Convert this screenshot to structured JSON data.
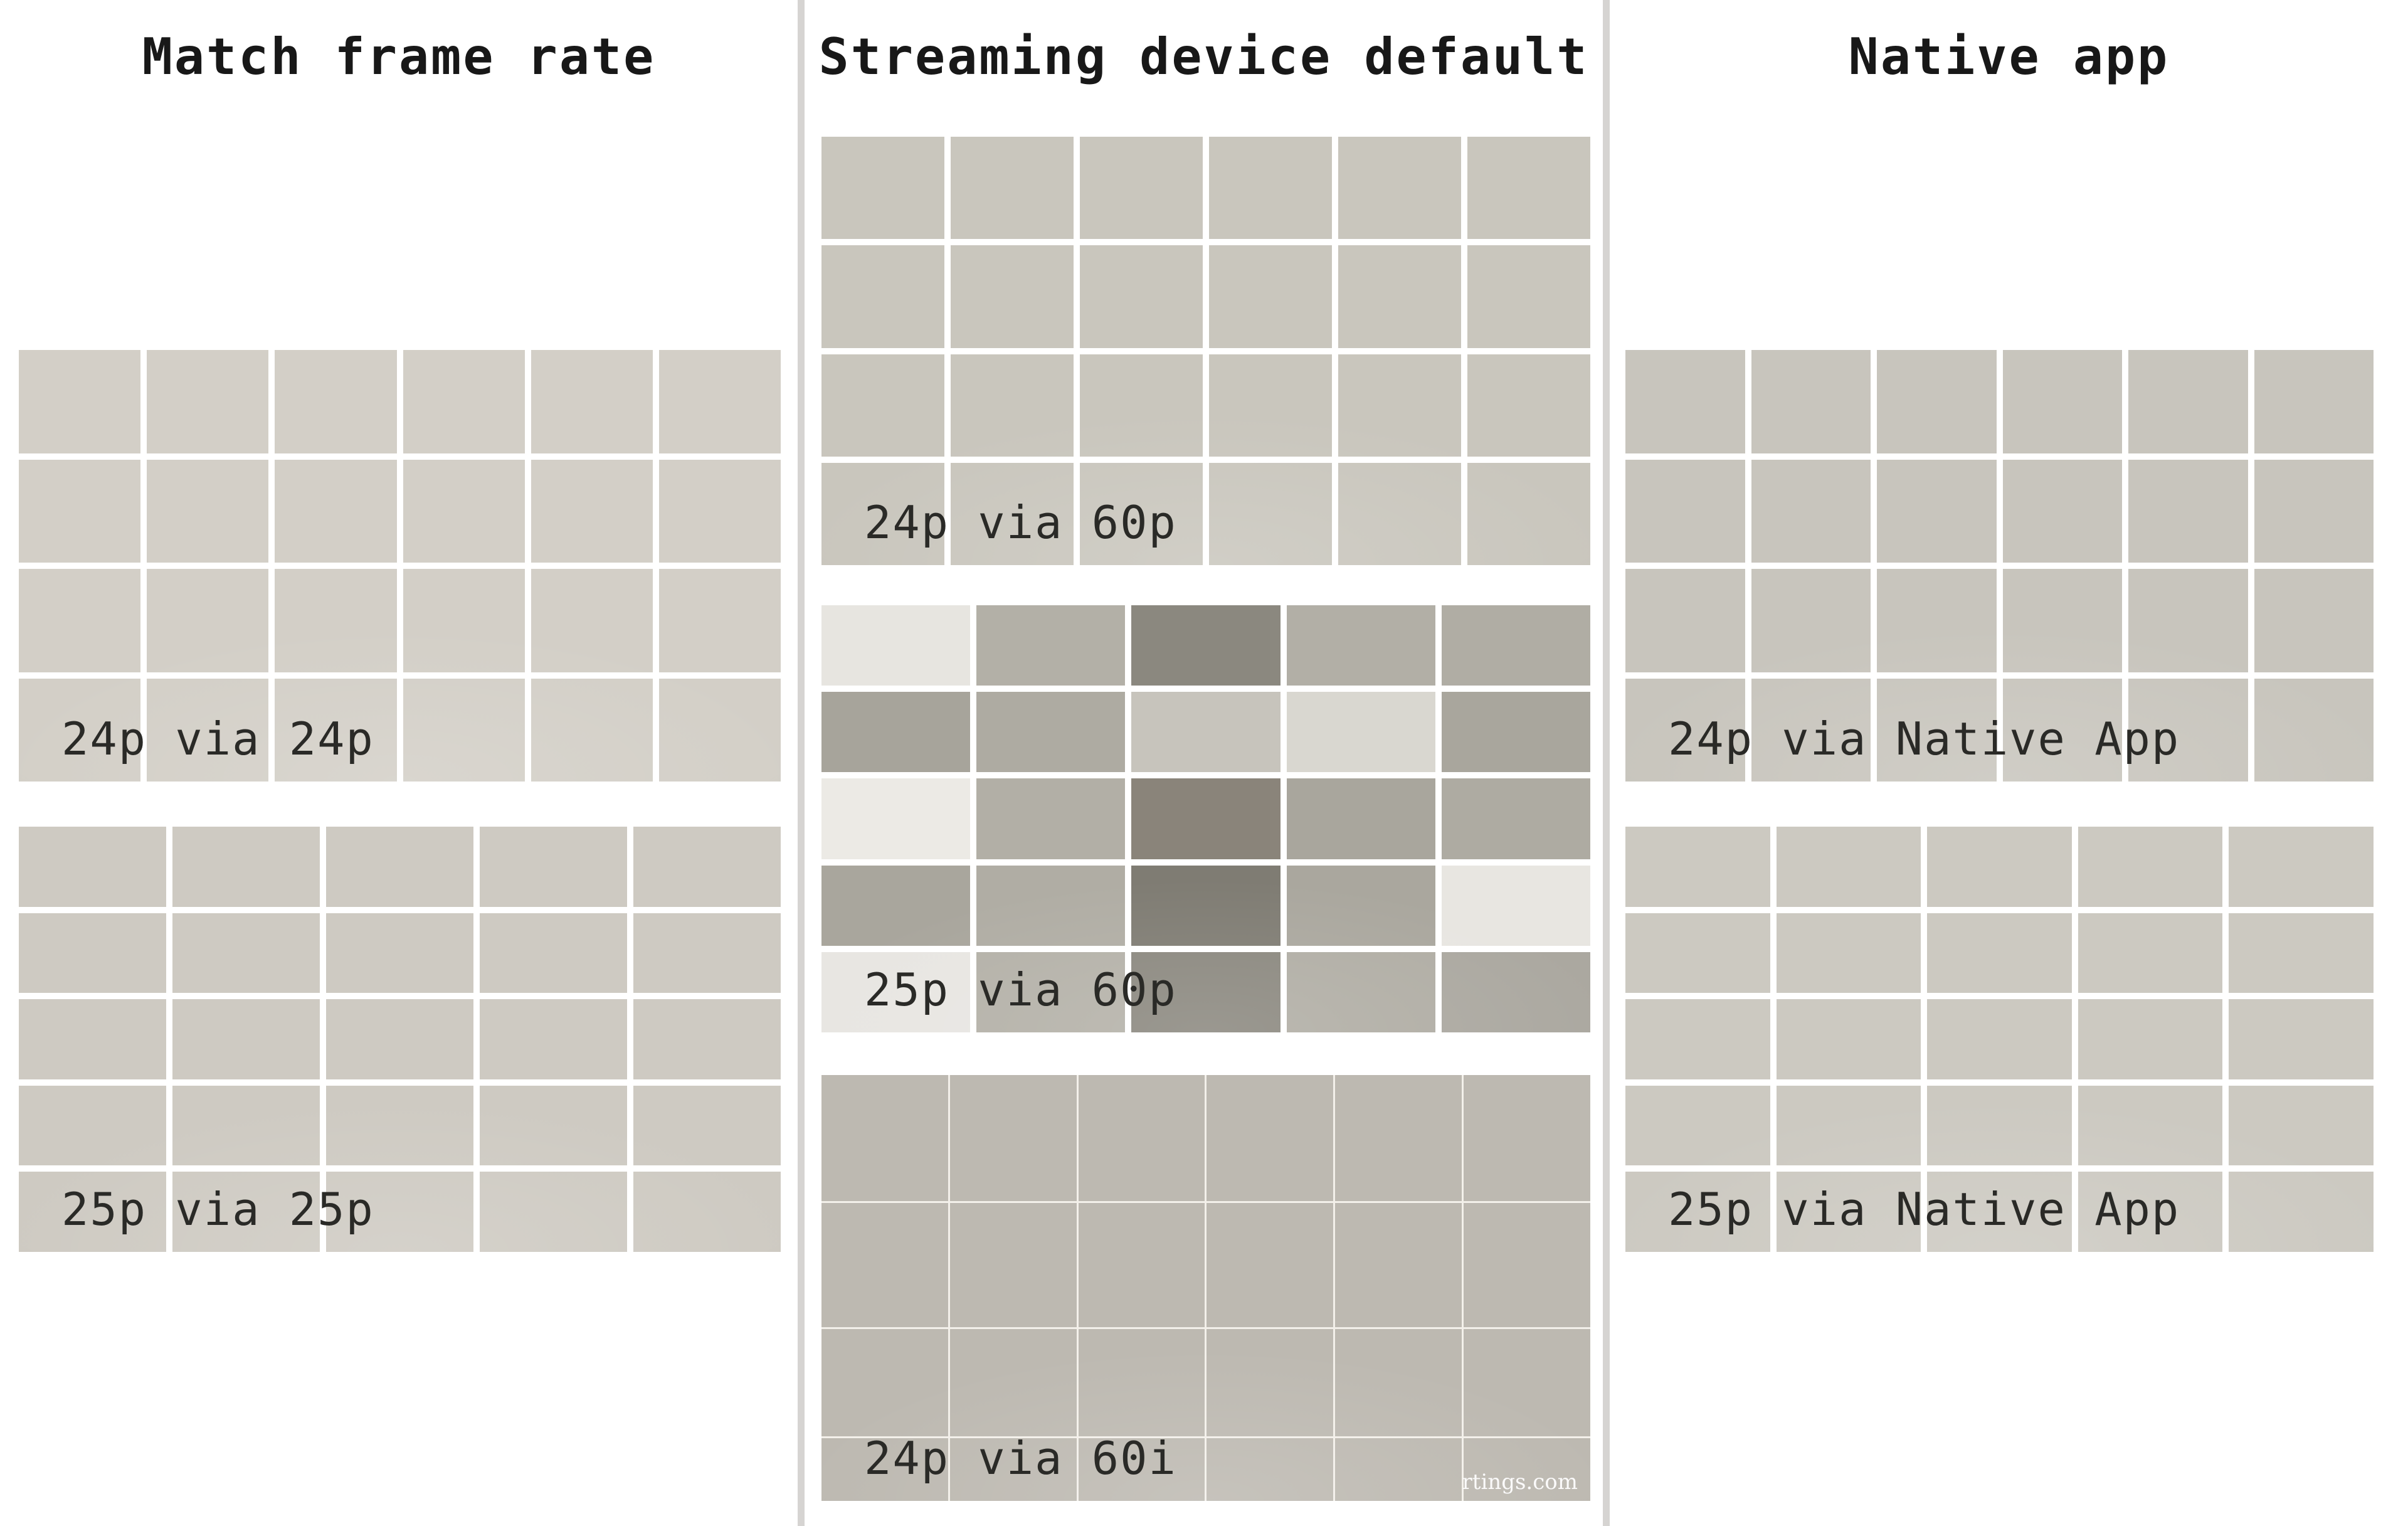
{
  "page": {
    "background_color": "#ffffff",
    "divider_color": "#d6d4d2"
  },
  "columns": [
    {
      "title": "Match frame rate"
    },
    {
      "title": "Streaming device default"
    },
    {
      "title": "Native app"
    }
  ],
  "watermark": "rtings.com",
  "panels": [
    {
      "label": "24p via 24p",
      "cols": 6,
      "rows": 4,
      "line_gap": 10,
      "line_color": "#ffffff",
      "cell_color": "#d3cfc7"
    },
    {
      "label": "25p via 25p",
      "cols": 5,
      "rows": 5,
      "line_gap": 10,
      "line_color": "#ffffff",
      "cell_color": "#cecac2"
    },
    {
      "label": "24p via 60p",
      "cols": 6,
      "rows": 4,
      "line_gap": 10,
      "line_color": "#ffffff",
      "cell_color": "#c9c6bd"
    },
    {
      "label": "25p via 60p",
      "cols": 5,
      "rows": 5,
      "line_gap": 10,
      "line_color": "#ffffff",
      "cell_colors": [
        [
          "#e7e5e0",
          "#b3b0a7",
          "#8b887f",
          "#b2afa6",
          "#b0ada4"
        ],
        [
          "#a7a49b",
          "#aeaba2",
          "#c7c4bc",
          "#d9d7d0",
          "#a9a69d"
        ],
        [
          "#eceae5",
          "#b2afa6",
          "#8a847a",
          "#a9a69d",
          "#aeaba2"
        ],
        [
          "#a9a69d",
          "#b0ada4",
          "#7f7c73",
          "#aaa79e",
          "#e8e6e1"
        ],
        [
          "#e8e6e2",
          "#b4b1a8",
          "#8a877e",
          "#b0ada4",
          "#aba8a0"
        ]
      ]
    },
    {
      "label": "24p via 60i",
      "cols": 6,
      "rows": 4,
      "line_gap": 3,
      "row_fractions": [
        0.3,
        0.295,
        0.255,
        0.15
      ],
      "line_color": "#f3f0ea",
      "cell_color": "#bdb9b1",
      "has_watermark": true
    },
    {
      "label": "24p via Native App",
      "cols": 6,
      "rows": 4,
      "line_gap": 10,
      "line_color": "#ffffff",
      "cell_color": "#c8c5bd"
    },
    {
      "label": "25p via Native App",
      "cols": 5,
      "rows": 5,
      "line_gap": 10,
      "line_color": "#ffffff",
      "cell_color": "#ccc9c1"
    }
  ]
}
